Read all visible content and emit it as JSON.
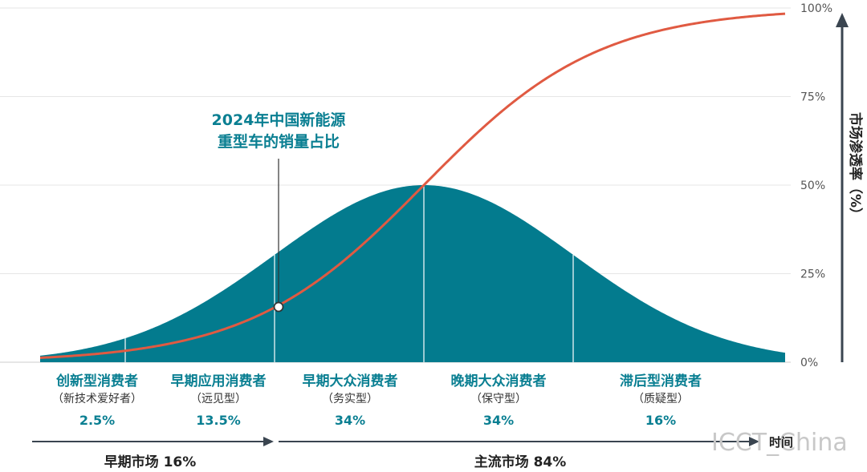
{
  "chart_data": {
    "type": "area",
    "y_axis": {
      "title": "市场渗透率（%）",
      "ticks": [
        "0%",
        "25%",
        "50%",
        "75%",
        "100%"
      ],
      "range": [
        0,
        100
      ]
    },
    "x_axis": {
      "label": "时间"
    },
    "grid": true,
    "series": [
      {
        "kind": "adoption-bell-area",
        "color": "#037b8e"
      },
      {
        "kind": "cumulative-s-curve",
        "color": "#e05a42"
      }
    ],
    "segments": [
      {
        "name": "创新型消费者",
        "sub": "（新技术爱好者）",
        "pct": "2.5%",
        "value": 2.5
      },
      {
        "name": "早期应用消费者",
        "sub": "（远见型）",
        "pct": "13.5%",
        "value": 13.5
      },
      {
        "name": "早期大众消费者",
        "sub": "（务实型）",
        "pct": "34%",
        "value": 34
      },
      {
        "name": "晚期大众消费者",
        "sub": "（保守型）",
        "pct": "34%",
        "value": 34
      },
      {
        "name": "滞后型消费者",
        "sub": "（质疑型）",
        "pct": "16%",
        "value": 16
      }
    ],
    "annotation": {
      "lines": [
        "2024年中国新能源",
        "重型车的销量占比"
      ],
      "y_value": 16
    },
    "markets": [
      {
        "label": "早期市场 16%",
        "value": 16
      },
      {
        "label": "主流市场 84%",
        "value": 84
      }
    ]
  },
  "watermark": "ICCT_China"
}
